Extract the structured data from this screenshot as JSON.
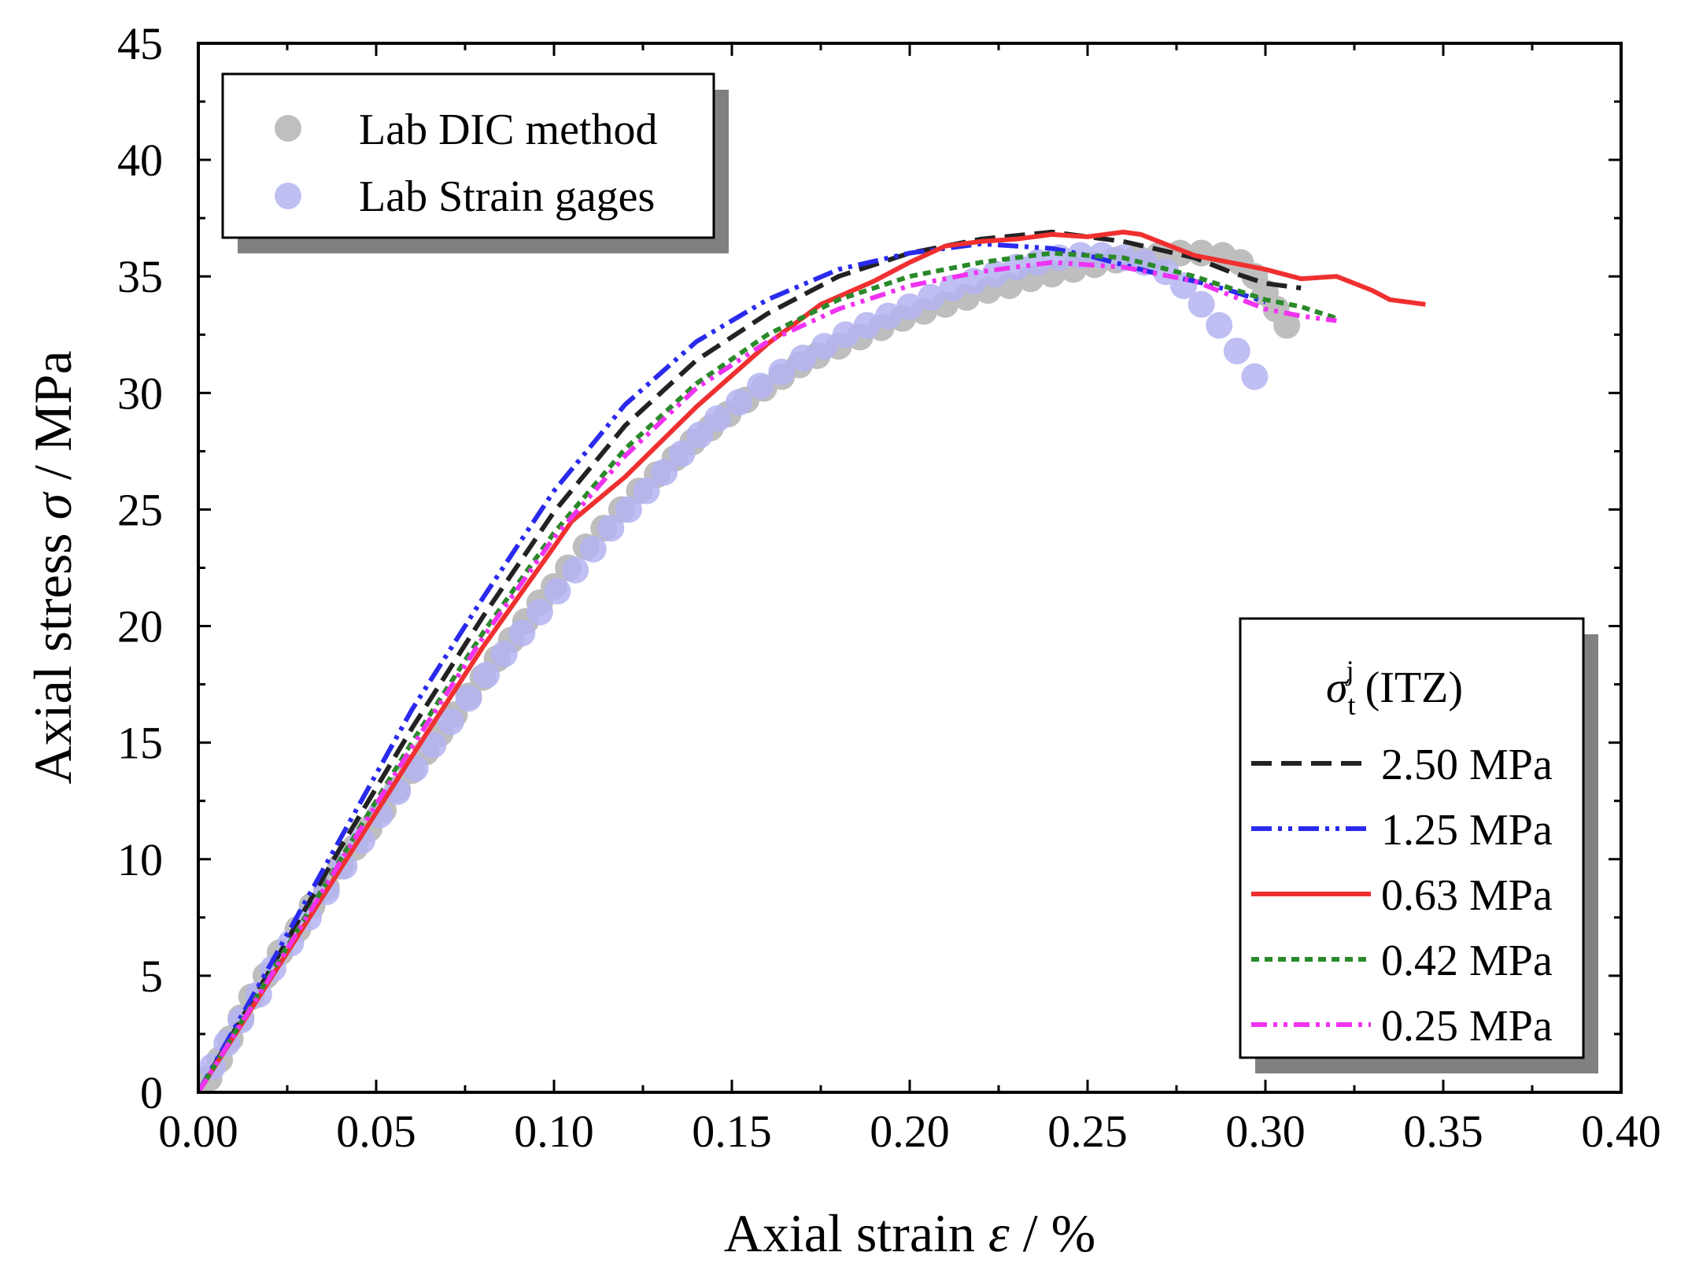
{
  "chart_data": {
    "type": "line",
    "title": "",
    "xlabel": {
      "prefix": "Axial strain ",
      "symbol": "ε",
      "suffix": " / %"
    },
    "ylabel": {
      "prefix": "Axial stress ",
      "symbol": "σ",
      "suffix": " / MPa"
    },
    "xlim": [
      0,
      0.4
    ],
    "ylim": [
      0,
      45
    ],
    "xticks": [
      "0.00",
      "0.05",
      "0.10",
      "0.15",
      "0.20",
      "0.25",
      "0.30",
      "0.35",
      "0.40"
    ],
    "yticks": [
      "0",
      "5",
      "10",
      "15",
      "20",
      "25",
      "30",
      "35",
      "40",
      "45"
    ],
    "grid": false,
    "scatter_legend_position": "top-left",
    "line_legend_position": "bottom-right",
    "line_legend_title": {
      "symbol": "σ",
      "sub": "t",
      "sup": "j",
      "rest": " (ITZ)"
    },
    "scatter_series": [
      {
        "name": "Lab DIC method",
        "color": "#a9a9a9",
        "x": [
          0.003,
          0.006,
          0.009,
          0.012,
          0.015,
          0.019,
          0.023,
          0.028,
          0.032,
          0.036,
          0.04,
          0.044,
          0.048,
          0.052,
          0.056,
          0.06,
          0.064,
          0.068,
          0.072,
          0.076,
          0.08,
          0.084,
          0.088,
          0.092,
          0.096,
          0.1,
          0.104,
          0.109,
          0.114,
          0.119,
          0.124,
          0.129,
          0.134,
          0.139,
          0.144,
          0.149,
          0.154,
          0.159,
          0.164,
          0.169,
          0.174,
          0.18,
          0.186,
          0.192,
          0.198,
          0.204,
          0.21,
          0.216,
          0.222,
          0.228,
          0.234,
          0.24,
          0.246,
          0.252,
          0.258,
          0.264,
          0.27,
          0.276,
          0.282,
          0.288,
          0.293,
          0.297,
          0.3,
          0.303,
          0.306
        ],
        "y": [
          0.6,
          1.4,
          2.3,
          3.2,
          4.1,
          5.0,
          6.0,
          7.0,
          8.0,
          8.8,
          9.7,
          10.5,
          11.3,
          12.1,
          13.0,
          13.8,
          14.6,
          15.4,
          16.2,
          17.0,
          17.8,
          18.6,
          19.4,
          20.2,
          21.0,
          21.7,
          22.5,
          23.4,
          24.2,
          25.0,
          25.8,
          26.5,
          27.2,
          27.9,
          28.5,
          29.1,
          29.7,
          30.2,
          30.7,
          31.2,
          31.6,
          32.0,
          32.4,
          32.8,
          33.2,
          33.5,
          33.8,
          34.1,
          34.4,
          34.6,
          34.9,
          35.1,
          35.3,
          35.5,
          35.7,
          35.8,
          35.9,
          36.0,
          36.0,
          35.9,
          35.6,
          35.0,
          34.3,
          33.6,
          32.9
        ]
      },
      {
        "name": "Lab Strain gages",
        "color": "#b4b4f2",
        "x": [
          0.004,
          0.008,
          0.012,
          0.017,
          0.021,
          0.026,
          0.031,
          0.036,
          0.041,
          0.046,
          0.051,
          0.056,
          0.061,
          0.066,
          0.071,
          0.076,
          0.081,
          0.086,
          0.091,
          0.096,
          0.101,
          0.106,
          0.111,
          0.116,
          0.121,
          0.126,
          0.131,
          0.136,
          0.141,
          0.146,
          0.152,
          0.158,
          0.164,
          0.17,
          0.176,
          0.182,
          0.188,
          0.194,
          0.2,
          0.206,
          0.212,
          0.218,
          0.224,
          0.23,
          0.236,
          0.242,
          0.248,
          0.254,
          0.26,
          0.266,
          0.272,
          0.277,
          0.282,
          0.287,
          0.292,
          0.297
        ],
        "y": [
          1.1,
          2.1,
          3.1,
          4.2,
          5.3,
          6.4,
          7.5,
          8.6,
          9.7,
          10.8,
          11.9,
          12.9,
          13.9,
          14.9,
          15.9,
          16.9,
          17.9,
          18.8,
          19.7,
          20.6,
          21.5,
          22.4,
          23.3,
          24.2,
          25.0,
          25.8,
          26.6,
          27.4,
          28.2,
          28.9,
          29.6,
          30.3,
          30.9,
          31.5,
          32.0,
          32.5,
          32.9,
          33.3,
          33.7,
          34.1,
          34.5,
          34.8,
          35.1,
          35.4,
          35.6,
          35.8,
          35.9,
          35.9,
          35.8,
          35.6,
          35.2,
          34.6,
          33.8,
          32.9,
          31.8,
          30.7
        ]
      }
    ],
    "line_series": [
      {
        "name": "2.50 MPa",
        "color": "#222222",
        "dash": "26,12",
        "x": [
          0,
          0.02,
          0.04,
          0.06,
          0.08,
          0.1,
          0.12,
          0.14,
          0.16,
          0.18,
          0.2,
          0.22,
          0.24,
          0.26,
          0.28,
          0.29,
          0.3,
          0.31
        ],
        "y": [
          0,
          5.2,
          10.5,
          15.6,
          20.4,
          24.9,
          28.6,
          31.4,
          33.4,
          35.0,
          36.0,
          36.6,
          36.9,
          36.5,
          35.8,
          35.2,
          34.7,
          34.5
        ]
      },
      {
        "name": "1.25 MPa",
        "color": "#2a2aee",
        "dash": "26,8,5,8,5,8",
        "x": [
          0,
          0.02,
          0.04,
          0.06,
          0.08,
          0.1,
          0.12,
          0.14,
          0.16,
          0.18,
          0.2,
          0.22,
          0.24,
          0.25,
          0.26,
          0.27,
          0.28,
          0.29,
          0.3
        ],
        "y": [
          0,
          5.4,
          10.9,
          16.4,
          21.2,
          25.8,
          29.5,
          32.2,
          34.0,
          35.3,
          36.0,
          36.4,
          36.2,
          35.9,
          35.5,
          35.1,
          34.8,
          34.4,
          33.9
        ]
      },
      {
        "name": "0.63 MPa",
        "color": "#f03030",
        "dash": "",
        "x": [
          0,
          0.02,
          0.04,
          0.06,
          0.08,
          0.1,
          0.105,
          0.12,
          0.14,
          0.16,
          0.175,
          0.19,
          0.2,
          0.21,
          0.22,
          0.23,
          0.24,
          0.25,
          0.26,
          0.265,
          0.27,
          0.28,
          0.29,
          0.3,
          0.31,
          0.32,
          0.33,
          0.335,
          0.345
        ],
        "y": [
          0,
          4.8,
          9.6,
          14.4,
          19.1,
          23.4,
          24.5,
          26.4,
          29.4,
          32.1,
          33.8,
          34.8,
          35.6,
          36.3,
          36.5,
          36.6,
          36.8,
          36.7,
          36.9,
          36.8,
          36.5,
          35.9,
          35.6,
          35.3,
          34.9,
          35.0,
          34.4,
          34.0,
          33.8
        ]
      },
      {
        "name": "0.42 MPa",
        "color": "#2a8a2a",
        "dash": "10,7",
        "x": [
          0,
          0.02,
          0.04,
          0.06,
          0.08,
          0.1,
          0.12,
          0.14,
          0.16,
          0.18,
          0.2,
          0.22,
          0.24,
          0.26,
          0.28,
          0.3,
          0.31,
          0.32
        ],
        "y": [
          0,
          5.0,
          10.0,
          15.0,
          19.7,
          24.0,
          27.6,
          30.4,
          32.5,
          34.0,
          35.0,
          35.6,
          36.0,
          35.8,
          35.0,
          34.0,
          33.7,
          33.2
        ]
      },
      {
        "name": "0.25 MPa",
        "color": "#f033f0",
        "dash": "20,8,5,8,5,8",
        "x": [
          0,
          0.02,
          0.04,
          0.06,
          0.08,
          0.1,
          0.12,
          0.14,
          0.16,
          0.18,
          0.2,
          0.22,
          0.24,
          0.26,
          0.28,
          0.3,
          0.31,
          0.32
        ],
        "y": [
          0,
          4.9,
          9.9,
          14.8,
          19.5,
          23.8,
          27.3,
          30.2,
          32.2,
          33.6,
          34.6,
          35.2,
          35.6,
          35.4,
          34.8,
          33.6,
          33.3,
          33.1
        ]
      }
    ]
  }
}
